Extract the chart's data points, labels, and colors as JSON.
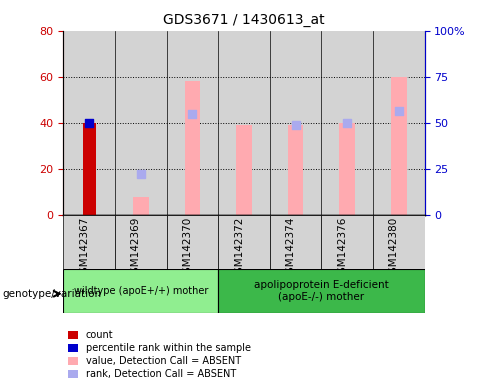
{
  "title": "GDS3671 / 1430613_at",
  "samples": [
    "GSM142367",
    "GSM142369",
    "GSM142370",
    "GSM142372",
    "GSM142374",
    "GSM142376",
    "GSM142380"
  ],
  "count_values": [
    40,
    null,
    null,
    null,
    null,
    null,
    null
  ],
  "percentile_values": [
    40,
    null,
    null,
    null,
    null,
    null,
    null
  ],
  "pink_bar_values": [
    null,
    8,
    58,
    39,
    39,
    40,
    60
  ],
  "blue_rank_values": [
    null,
    18,
    44,
    null,
    39,
    40,
    45
  ],
  "ylim_left": [
    0,
    80
  ],
  "ylim_right": [
    0,
    100
  ],
  "yticks_left": [
    0,
    20,
    40,
    60,
    80
  ],
  "yticks_right": [
    0,
    25,
    50,
    75,
    100
  ],
  "ytick_labels_left": [
    "0",
    "20",
    "40",
    "60",
    "80"
  ],
  "ytick_labels_right": [
    "0",
    "25",
    "50",
    "75",
    "100%"
  ],
  "group1_label": "wildtype (apoE+/+) mother",
  "group2_label": "apolipoprotein E-deficient\n(apoE-/-) mother",
  "group_annotation_label": "genotype/variation",
  "group1_color": "#90ee90",
  "group2_color": "#3cb84a",
  "col_bg_color": "#d3d3d3",
  "red_bar_color": "#cc0000",
  "blue_sq_color": "#0000cc",
  "pink_bar_color": "#ffaab0",
  "blue_rank_color": "#aaaaee",
  "legend_labels": [
    "count",
    "percentile rank within the sample",
    "value, Detection Call = ABSENT",
    "rank, Detection Call = ABSENT"
  ],
  "legend_colors": [
    "#cc0000",
    "#0000cc",
    "#ffaab0",
    "#aaaaee"
  ],
  "background_color": "#ffffff",
  "tick_color_left": "#cc0000",
  "tick_color_right": "#0000cc",
  "bar_width": 0.5
}
